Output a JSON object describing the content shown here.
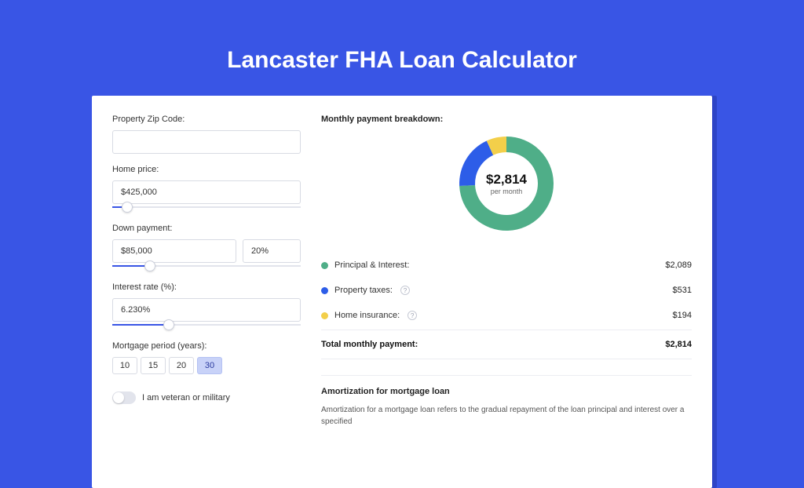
{
  "page": {
    "title": "Lancaster FHA Loan Calculator",
    "background_color": "#3955e5",
    "card_background": "#ffffff",
    "accent_color": "#3955e5"
  },
  "form": {
    "zip": {
      "label": "Property Zip Code:",
      "value": ""
    },
    "home_price": {
      "label": "Home price:",
      "value": "$425,000",
      "slider_percent": 8
    },
    "down_payment": {
      "label": "Down payment:",
      "value": "$85,000",
      "percent_value": "20%",
      "slider_percent": 20
    },
    "interest_rate": {
      "label": "Interest rate (%):",
      "value": "6.230%",
      "slider_percent": 30
    },
    "mortgage_period": {
      "label": "Mortgage period (years):",
      "options": [
        "10",
        "15",
        "20",
        "30"
      ],
      "selected": "30"
    },
    "veteran": {
      "label": "I am veteran or military",
      "checked": false
    }
  },
  "breakdown": {
    "title": "Monthly payment breakdown:",
    "chart": {
      "type": "donut",
      "center_amount": "$2,814",
      "center_sub": "per month",
      "series": [
        {
          "name": "Principal & Interest",
          "value": 2089,
          "color": "#4fae88",
          "percent": 74.2
        },
        {
          "name": "Property taxes",
          "value": 531,
          "color": "#2d5de8",
          "percent": 18.9
        },
        {
          "name": "Home insurance",
          "value": 194,
          "color": "#f3cf4a",
          "percent": 6.9
        }
      ],
      "thickness": 20,
      "background": "#ffffff"
    },
    "items": [
      {
        "label": "Principal & Interest:",
        "value": "$2,089",
        "color": "#4fae88",
        "info": false
      },
      {
        "label": "Property taxes:",
        "value": "$531",
        "color": "#2d5de8",
        "info": true
      },
      {
        "label": "Home insurance:",
        "value": "$194",
        "color": "#f3cf4a",
        "info": true
      }
    ],
    "total": {
      "label": "Total monthly payment:",
      "value": "$2,814"
    }
  },
  "amortization": {
    "title": "Amortization for mortgage loan",
    "text": "Amortization for a mortgage loan refers to the gradual repayment of the loan principal and interest over a specified"
  }
}
